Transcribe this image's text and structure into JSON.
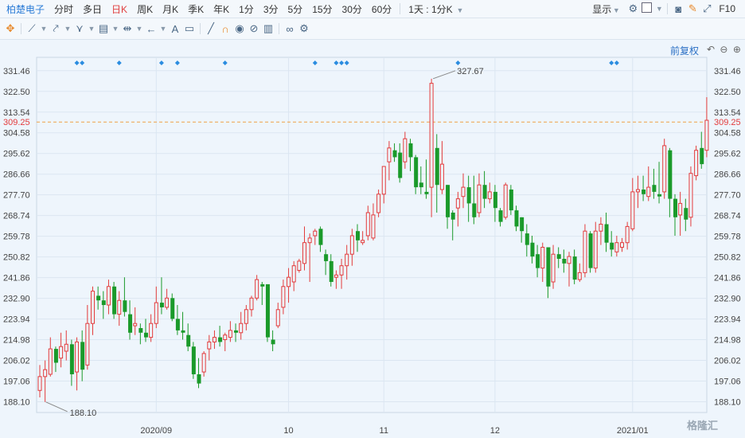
{
  "top_bar": {
    "stock_name": "柏楚电子",
    "periods": [
      "分时",
      "多日",
      "日K",
      "周K",
      "月K",
      "季K",
      "年K",
      "1分",
      "3分",
      "5分",
      "15分",
      "30分",
      "60分"
    ],
    "active_period": "日K",
    "range_selector": "1天 : 1分K",
    "display_label": "显示",
    "f10_label": "F10"
  },
  "tool_bar": {
    "icons": [
      "crosshair-icon",
      "line-tool-icon",
      "ray-tool-icon",
      "wave-tool-icon",
      "fib-tool-icon",
      "measure-tool-icon",
      "back-arrow-icon",
      "text-tool-icon",
      "comment-icon",
      "pencil-icon",
      "magnet-icon",
      "eye-icon",
      "hide-icon",
      "trash-icon",
      "link-icon",
      "settings-icon"
    ]
  },
  "chart_controls": {
    "fuquan_label": "前复权"
  },
  "watermark": "格隆汇",
  "colors": {
    "up": "#e33b3b",
    "down": "#1a9a2a",
    "ref_line": "#f0a046",
    "marker": "#2a8ce0"
  },
  "chart_data": {
    "type": "candlestick",
    "title": "",
    "ylim": [
      184,
      336
    ],
    "y_ticks": [
      331.46,
      322.5,
      313.54,
      304.58,
      295.62,
      286.66,
      277.7,
      268.74,
      259.78,
      250.82,
      241.86,
      232.9,
      223.94,
      214.98,
      206.02,
      197.06,
      188.1
    ],
    "x_labels": [
      {
        "label": "2020/09",
        "index": 22
      },
      {
        "label": "10",
        "index": 47
      },
      {
        "label": "11",
        "index": 65
      },
      {
        "label": "12",
        "index": 86
      },
      {
        "label": "2021/01",
        "index": 112
      }
    ],
    "current_price_label": "309.25",
    "high_annotation": {
      "label": "327.67",
      "index": 74
    },
    "low_annotation": {
      "label": "188.10",
      "index": 1
    },
    "marker_indices": [
      7,
      8,
      15,
      23,
      26,
      35,
      52,
      56,
      57,
      58,
      79,
      108,
      109
    ],
    "candles": [
      [
        193,
        199,
        204,
        190
      ],
      [
        199,
        202,
        206,
        188
      ],
      [
        200,
        211,
        216,
        199
      ],
      [
        211,
        205,
        212,
        201
      ],
      [
        207,
        212,
        218,
        203
      ],
      [
        210,
        213,
        219,
        206
      ],
      [
        213,
        200,
        215,
        195
      ],
      [
        201,
        214,
        216,
        193
      ],
      [
        214,
        202,
        219,
        197
      ],
      [
        204,
        222,
        230,
        202
      ],
      [
        222,
        236,
        238,
        217
      ],
      [
        234,
        232,
        238,
        228
      ],
      [
        232,
        230,
        236,
        224
      ],
      [
        230,
        238,
        241,
        226
      ],
      [
        238,
        226,
        240,
        224
      ],
      [
        226,
        232,
        236,
        221
      ],
      [
        232,
        227,
        242,
        225
      ],
      [
        226,
        218,
        232,
        215
      ],
      [
        221,
        222,
        229,
        217
      ],
      [
        220,
        218,
        222,
        213
      ],
      [
        218,
        216,
        224,
        214
      ],
      [
        216,
        222,
        226,
        214
      ],
      [
        222,
        231,
        238,
        220
      ],
      [
        231,
        229,
        242,
        226
      ],
      [
        229,
        233,
        237,
        228
      ],
      [
        233,
        224,
        235,
        223
      ],
      [
        224,
        219,
        230,
        217
      ],
      [
        219,
        218,
        227,
        215
      ],
      [
        217,
        212,
        222,
        210
      ],
      [
        212,
        200,
        214,
        198
      ],
      [
        200,
        196,
        207,
        194
      ],
      [
        201,
        209,
        210,
        199
      ],
      [
        211,
        214,
        217,
        206
      ],
      [
        214,
        216,
        219,
        211
      ],
      [
        216,
        214,
        221,
        212
      ],
      [
        215,
        217,
        218,
        210
      ],
      [
        216,
        219,
        223,
        214
      ],
      [
        219,
        218,
        222,
        214
      ],
      [
        218,
        222,
        227,
        215
      ],
      [
        222,
        228,
        230,
        219
      ],
      [
        228,
        233,
        234,
        225
      ],
      [
        233,
        241,
        243,
        232
      ],
      [
        239,
        238,
        240,
        230
      ],
      [
        239,
        216,
        233,
        214
      ],
      [
        215,
        213,
        219,
        210
      ],
      [
        221,
        228,
        231,
        220
      ],
      [
        229,
        238,
        241,
        226
      ],
      [
        238,
        242,
        246,
        231
      ],
      [
        240,
        247,
        249,
        236
      ],
      [
        245,
        249,
        250,
        244
      ],
      [
        248,
        257,
        264,
        245
      ],
      [
        257,
        259,
        261,
        240
      ],
      [
        260,
        262,
        263,
        256
      ],
      [
        263,
        256,
        264,
        253
      ],
      [
        252,
        249,
        254,
        243
      ],
      [
        249,
        240,
        252,
        238
      ],
      [
        242,
        243,
        245,
        237
      ],
      [
        243,
        247,
        250,
        237
      ],
      [
        247,
        252,
        256,
        241
      ],
      [
        252,
        260,
        263,
        247
      ],
      [
        262,
        258,
        265,
        253
      ],
      [
        257,
        258,
        262,
        256
      ],
      [
        260,
        270,
        273,
        258
      ],
      [
        259,
        269,
        274,
        258
      ],
      [
        270,
        278,
        280,
        268
      ],
      [
        278,
        290,
        290,
        274
      ],
      [
        292,
        298,
        301,
        284
      ],
      [
        297,
        294,
        300,
        292
      ],
      [
        296,
        285,
        300,
        283
      ],
      [
        292,
        302,
        305,
        289
      ],
      [
        300,
        294,
        302,
        288
      ],
      [
        294,
        281,
        295,
        278
      ],
      [
        283,
        281,
        290,
        278
      ],
      [
        279,
        278,
        293,
        276
      ],
      [
        281,
        326,
        328,
        268
      ],
      [
        298,
        282,
        304,
        270
      ],
      [
        280,
        291,
        301,
        278
      ],
      [
        282,
        268,
        282,
        263
      ],
      [
        270,
        267,
        271,
        258
      ],
      [
        272,
        276,
        279,
        264
      ],
      [
        277,
        281,
        287,
        272
      ],
      [
        281,
        274,
        286,
        266
      ],
      [
        274,
        268,
        286,
        265
      ],
      [
        270,
        282,
        287,
        268
      ],
      [
        282,
        276,
        288,
        272
      ],
      [
        276,
        279,
        283,
        274
      ],
      [
        279,
        272,
        282,
        266
      ],
      [
        271,
        266,
        272,
        264
      ],
      [
        268,
        282,
        283,
        267
      ],
      [
        280,
        271,
        282,
        269
      ],
      [
        271,
        264,
        273,
        262
      ],
      [
        268,
        262,
        268,
        257
      ],
      [
        261,
        256,
        265,
        251
      ],
      [
        257,
        251,
        260,
        248
      ],
      [
        252,
        246,
        256,
        242
      ],
      [
        246,
        255,
        257,
        240
      ],
      [
        255,
        238,
        255,
        233
      ],
      [
        240,
        252,
        256,
        237
      ],
      [
        252,
        250,
        255,
        246
      ],
      [
        250,
        248,
        254,
        244
      ],
      [
        248,
        251,
        253,
        238
      ],
      [
        251,
        241,
        254,
        239
      ],
      [
        241,
        244,
        248,
        240
      ],
      [
        244,
        262,
        265,
        242
      ],
      [
        261,
        246,
        262,
        244
      ],
      [
        246,
        262,
        266,
        244
      ],
      [
        262,
        265,
        268,
        256
      ],
      [
        265,
        257,
        270,
        253
      ],
      [
        257,
        254,
        262,
        251
      ],
      [
        253,
        257,
        260,
        251
      ],
      [
        255,
        257,
        259,
        253
      ],
      [
        257,
        264,
        266,
        254
      ],
      [
        263,
        279,
        285,
        262
      ],
      [
        279,
        280,
        286,
        272
      ],
      [
        280,
        278,
        286,
        275
      ],
      [
        277,
        281,
        290,
        275
      ],
      [
        282,
        279,
        289,
        276
      ],
      [
        278,
        277,
        292,
        274
      ],
      [
        279,
        299,
        302,
        276
      ],
      [
        297,
        276,
        298,
        268
      ],
      [
        276,
        268,
        278,
        260
      ],
      [
        269,
        274,
        279,
        260
      ],
      [
        272,
        267,
        276,
        262
      ],
      [
        268,
        287,
        290,
        264
      ],
      [
        286,
        297,
        299,
        284
      ],
      [
        298,
        291,
        305,
        289
      ],
      [
        297,
        310,
        320,
        294
      ]
    ]
  }
}
